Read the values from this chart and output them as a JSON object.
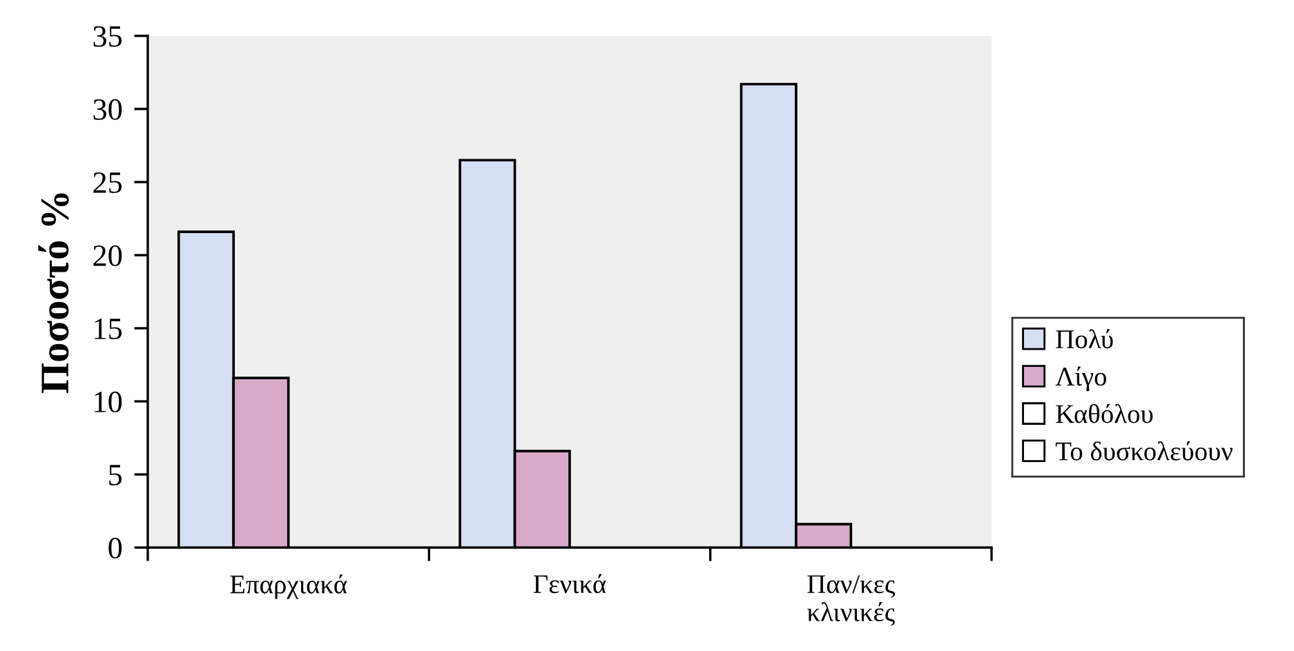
{
  "chart_data": {
    "type": "bar",
    "categories": [
      "Επαρχιακά",
      "Γενικά",
      "Παν/κες\nκλινικές"
    ],
    "ylabel": "Ποσοστό %",
    "ylim": [
      0,
      35
    ],
    "yticks": [
      0,
      5,
      10,
      15,
      20,
      25,
      30,
      35
    ],
    "legend": "right",
    "series": [
      {
        "name": "Πολύ",
        "color": "#d5def2",
        "values": [
          21.6,
          26.5,
          31.7
        ]
      },
      {
        "name": "Λίγο",
        "color": "#d9a9c9",
        "values": [
          11.6,
          6.6,
          1.6
        ]
      },
      {
        "name": "Καθόλου",
        "color": "#ffffff",
        "values": [
          null,
          null,
          null
        ]
      },
      {
        "name": "Το δυσκολεύουν",
        "color": "#ffffff",
        "values": [
          null,
          null,
          null
        ]
      }
    ]
  }
}
